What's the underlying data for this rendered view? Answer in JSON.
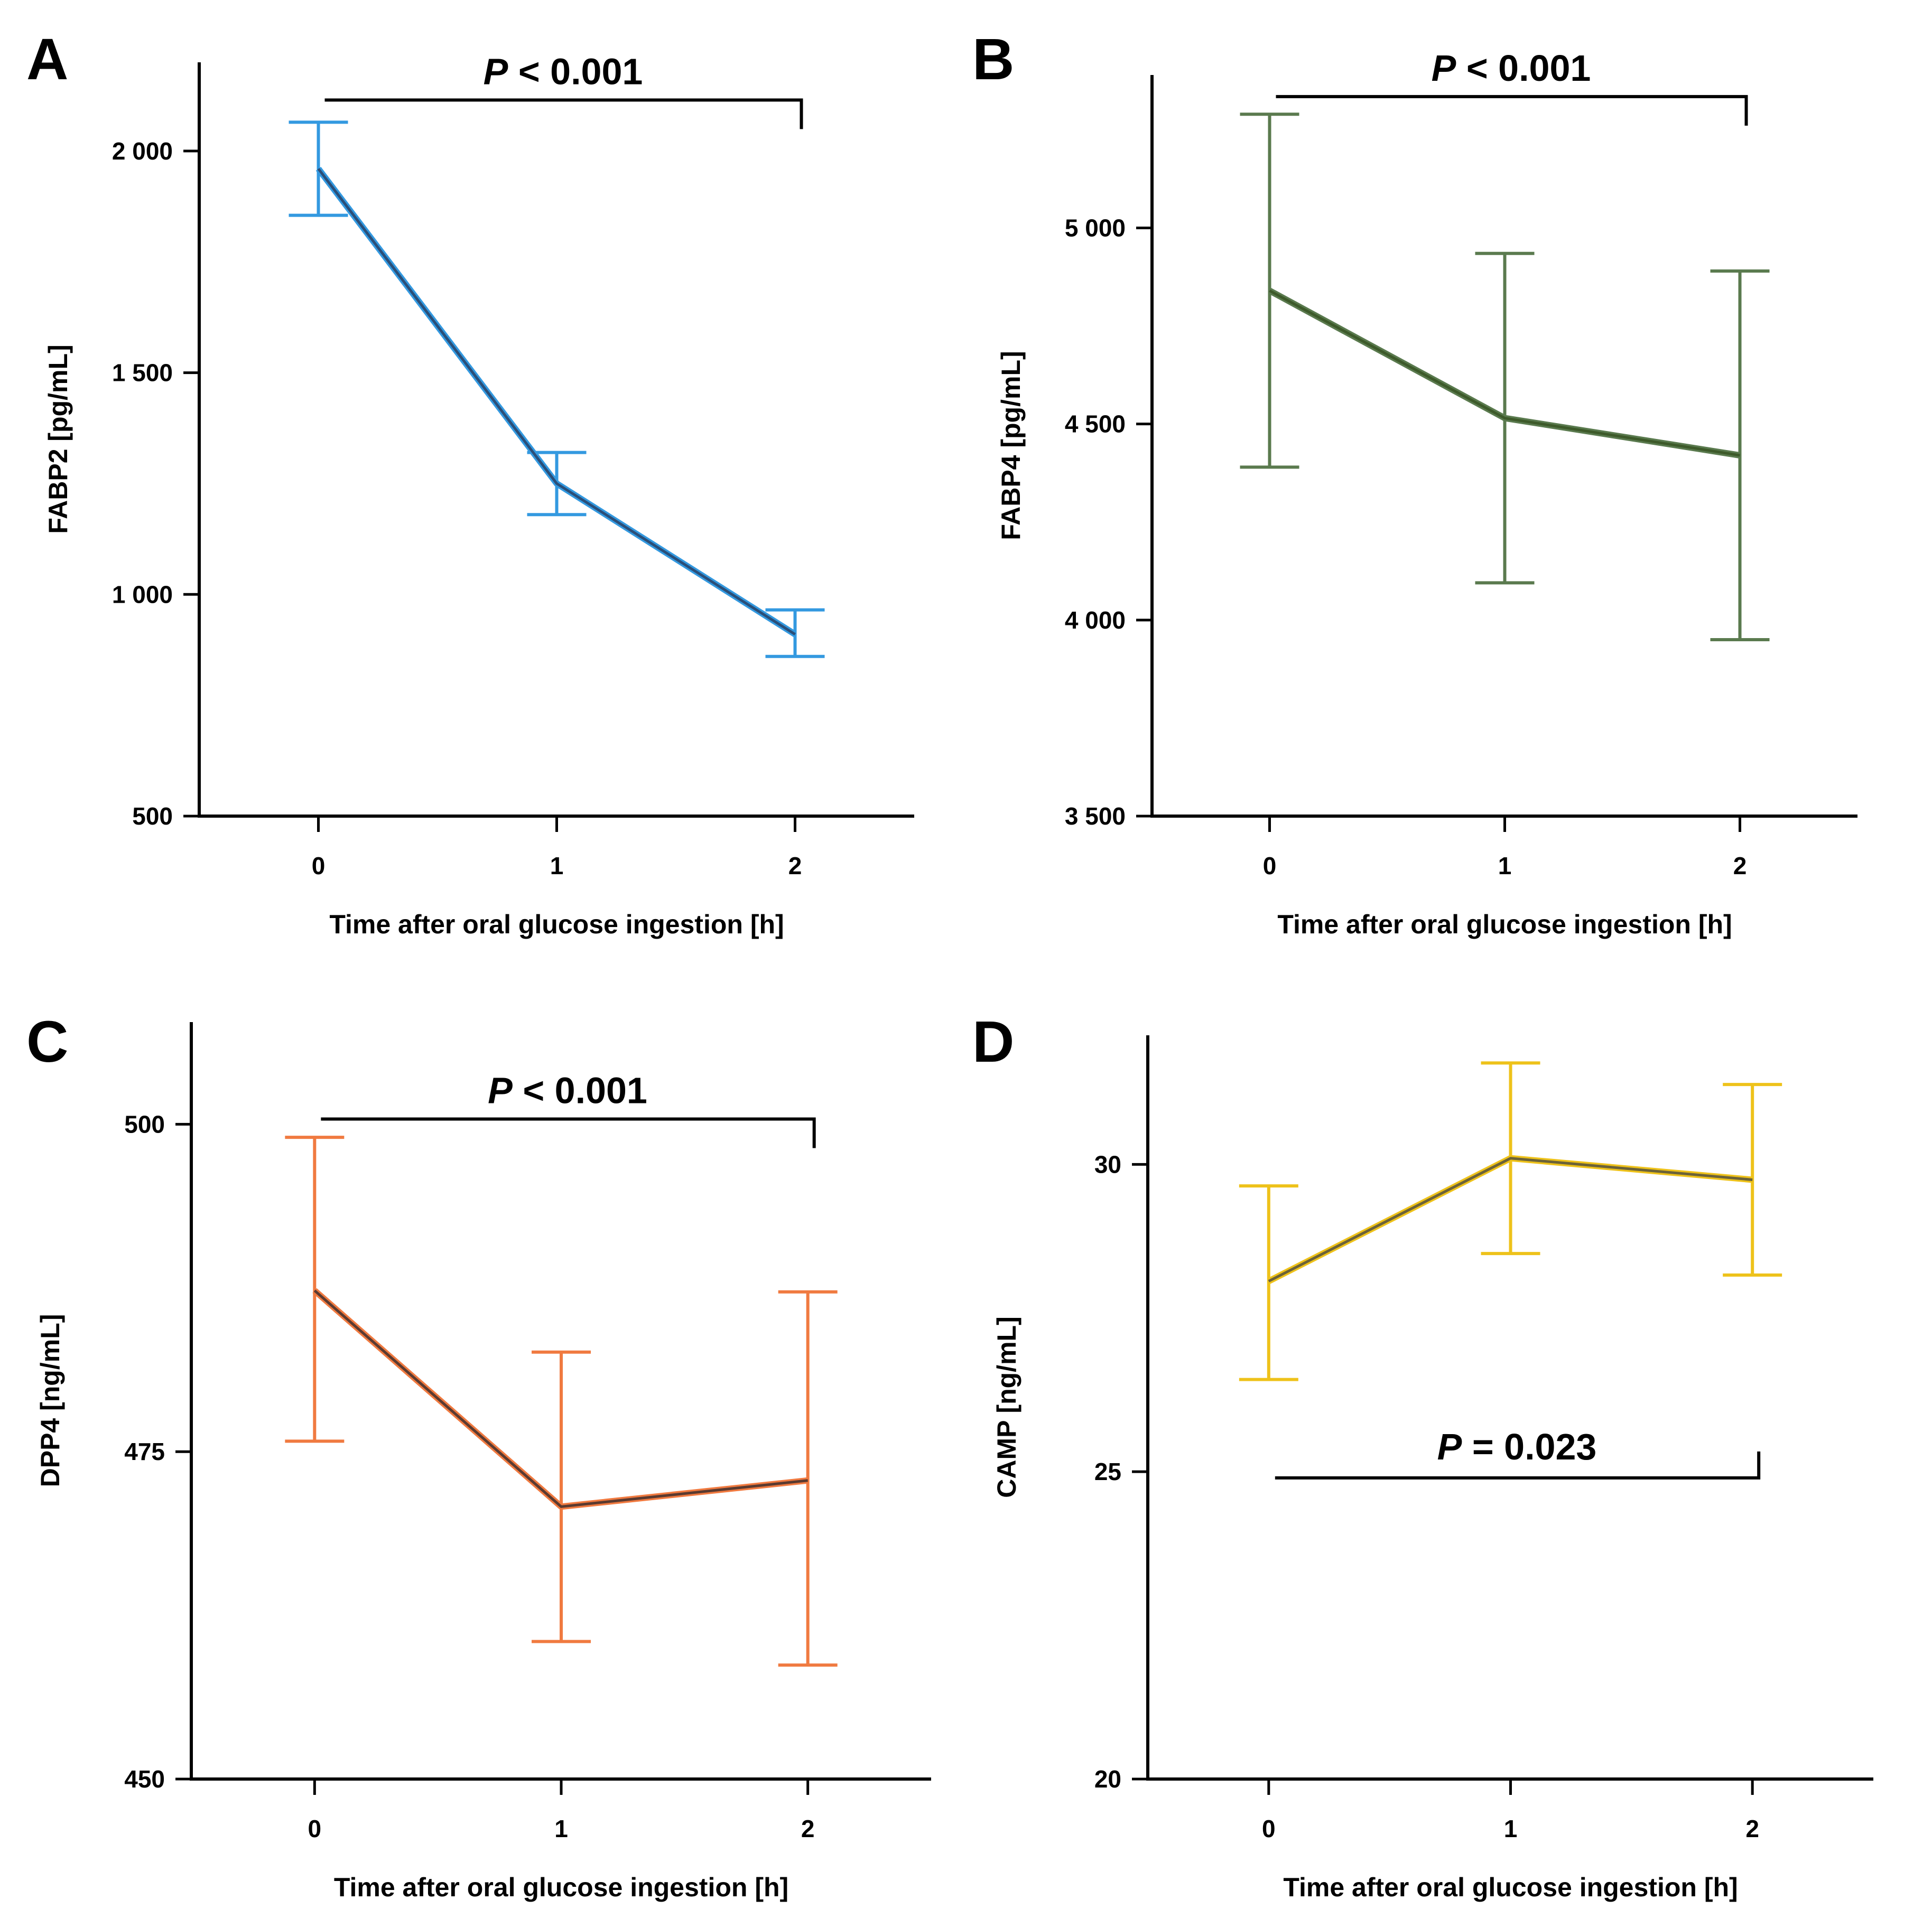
{
  "figure": {
    "background": "#ffffff"
  },
  "chart_data": [
    {
      "type": "line",
      "panel": "A",
      "title": "",
      "xlabel": "Time after oral glucose ingestion [h]",
      "ylabel": "FABP2 [pg/mL]",
      "color": "#3399e0",
      "line_core_color": "#2a4e78",
      "x": [
        0,
        1,
        2
      ],
      "x_tick_labels": [
        "0",
        "1",
        "2"
      ],
      "xlim": [
        -0.5,
        2.5
      ],
      "ylim": [
        500,
        2200
      ],
      "y_ticks": [
        500,
        1000,
        1500,
        2000
      ],
      "y_tick_labels": [
        "500",
        "1 000",
        "1 500",
        "2 000"
      ],
      "values": [
        1960,
        1250,
        910
      ],
      "err_low": [
        1855,
        1180,
        860
      ],
      "err_high": [
        2065,
        1320,
        965
      ],
      "significance": {
        "from": 0,
        "to": 2,
        "text_p": "P",
        "text_rest": " < 0.001",
        "y": 2115,
        "position": "above",
        "tick_end": "right"
      }
    },
    {
      "type": "line",
      "panel": "B",
      "title": "",
      "xlabel": "Time after oral glucose ingestion [h]",
      "ylabel": "FABP4 [pg/mL]",
      "color": "#5a7a4e",
      "line_core_color": "#3d5a2a",
      "x": [
        0,
        1,
        2
      ],
      "x_tick_labels": [
        "0",
        "1",
        "2"
      ],
      "xlim": [
        -0.5,
        2.5
      ],
      "ylim": [
        3500,
        5390
      ],
      "y_ticks": [
        3500,
        4000,
        4500,
        5000
      ],
      "y_tick_labels": [
        "3 500",
        "4 000",
        "4 500",
        "5 000"
      ],
      "values": [
        4840,
        4515,
        4420
      ],
      "err_low": [
        4390,
        4095,
        3950
      ],
      "err_high": [
        5290,
        4935,
        4890
      ],
      "significance": {
        "from": 0,
        "to": 2,
        "text_p": "P",
        "text_rest": " < 0.001",
        "y": 5335,
        "position": "above",
        "tick_end": "right"
      }
    },
    {
      "type": "line",
      "panel": "C",
      "title": "",
      "xlabel": "Time after oral glucose ingestion [h]",
      "ylabel": "DPP4 [ng/mL]",
      "color": "#f07a40",
      "line_core_color": "#5a3a30",
      "x": [
        0,
        1,
        2
      ],
      "x_tick_labels": [
        "0",
        "1",
        "2"
      ],
      "xlim": [
        -0.5,
        2.5
      ],
      "ylim": [
        450,
        507.8
      ],
      "y_ticks": [
        450,
        475,
        500
      ],
      "y_tick_labels": [
        "450",
        "475",
        "500"
      ],
      "values": [
        487.3,
        470.8,
        472.8
      ],
      "err_low": [
        475.8,
        460.5,
        458.7
      ],
      "err_high": [
        499.0,
        482.6,
        487.2
      ],
      "significance": {
        "from": 0,
        "to": 2,
        "text_p": "P",
        "text_rest": " < 0.001",
        "y": 500.4,
        "position": "above",
        "tick_end": "right"
      }
    },
    {
      "type": "line",
      "panel": "D",
      "title": "",
      "xlabel": "Time after oral glucose ingestion [h]",
      "ylabel": "CAMP [ng/mL]",
      "color": "#eec21a",
      "line_core_color": "#6b6238",
      "x": [
        0,
        1,
        2
      ],
      "x_tick_labels": [
        "0",
        "1",
        "2"
      ],
      "xlim": [
        -0.5,
        2.5
      ],
      "ylim": [
        20,
        32.1
      ],
      "y_ticks": [
        20,
        25,
        30
      ],
      "y_tick_labels": [
        "20",
        "25",
        "30"
      ],
      "values": [
        28.1,
        30.1,
        29.75
      ],
      "err_low": [
        26.5,
        28.55,
        28.2
      ],
      "err_high": [
        29.65,
        31.65,
        31.3
      ],
      "significance": {
        "from": 0,
        "to": 2,
        "text_p": "P",
        "text_rest": " = 0.023",
        "y": 24.9,
        "position": "below",
        "tick_end": "right"
      }
    }
  ]
}
